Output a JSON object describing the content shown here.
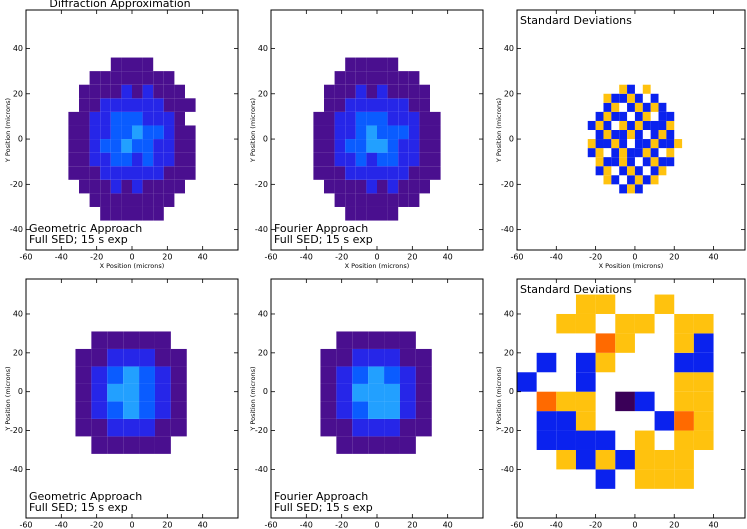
{
  "chart_data": [
    {
      "type": "heatmap",
      "title": "Diffraction Approximation",
      "annotations": [
        "Geometric Approach",
        "Full SED; 15 s exp"
      ],
      "xlabel": "X Position (microns)",
      "ylabel": "Y Position (microns)",
      "xlim": [
        -60,
        60
      ],
      "ylim": [
        -49,
        57
      ],
      "xticks": [
        -60,
        -40,
        -20,
        0,
        20,
        40
      ],
      "yticks": [
        -40,
        -20,
        0,
        20,
        40
      ],
      "x_edges": [
        -36,
        -30,
        -24,
        -18,
        -12,
        -6,
        0,
        6,
        12,
        18,
        24,
        30,
        36
      ],
      "y_edges": [
        -36,
        -30,
        -24,
        -18,
        -12,
        -6,
        0,
        6,
        12,
        18,
        24,
        30,
        36
      ],
      "levels": [
        1,
        2,
        3,
        4
      ],
      "colors": [
        "#4a0f8f",
        "#2626e8",
        "#0a5cff",
        "#22a0ff"
      ],
      "z": [
        [
          0,
          0,
          0,
          1,
          1,
          1,
          1,
          1,
          1,
          0,
          0,
          0
        ],
        [
          0,
          0,
          1,
          1,
          1,
          1,
          1,
          1,
          1,
          1,
          0,
          0
        ],
        [
          0,
          1,
          1,
          1,
          2,
          1,
          2,
          1,
          1,
          1,
          1,
          0
        ],
        [
          1,
          1,
          1,
          2,
          2,
          2,
          2,
          2,
          2,
          1,
          1,
          1
        ],
        [
          1,
          1,
          2,
          2,
          3,
          3,
          2,
          3,
          2,
          2,
          1,
          1
        ],
        [
          1,
          1,
          2,
          3,
          3,
          4,
          3,
          3,
          2,
          2,
          1,
          1
        ],
        [
          1,
          1,
          2,
          2,
          3,
          3,
          4,
          3,
          3,
          2,
          1,
          1
        ],
        [
          1,
          1,
          2,
          2,
          3,
          3,
          3,
          2,
          2,
          2,
          1,
          0
        ],
        [
          0,
          1,
          1,
          2,
          2,
          2,
          2,
          2,
          2,
          1,
          1,
          1
        ],
        [
          0,
          1,
          1,
          1,
          1,
          2,
          1,
          2,
          1,
          1,
          1,
          0
        ],
        [
          0,
          0,
          1,
          1,
          1,
          1,
          1,
          1,
          1,
          1,
          0,
          0
        ],
        [
          0,
          0,
          0,
          0,
          1,
          1,
          1,
          1,
          0,
          0,
          0,
          0
        ]
      ]
    },
    {
      "type": "heatmap",
      "annotations": [
        "Fourier Approach",
        "Full SED; 15 s exp"
      ],
      "xlabel": "X Position (microns)",
      "ylabel": "Y Position (microns)",
      "xlim": [
        -60,
        60
      ],
      "ylim": [
        -49,
        57
      ],
      "xticks": [
        -60,
        -40,
        -20,
        0,
        20,
        40
      ],
      "yticks": [
        -40,
        -20,
        0,
        20,
        40
      ],
      "x_edges": [
        -36,
        -30,
        -24,
        -18,
        -12,
        -6,
        0,
        6,
        12,
        18,
        24,
        30,
        36
      ],
      "y_edges": [
        -36,
        -30,
        -24,
        -18,
        -12,
        -6,
        0,
        6,
        12,
        18,
        24,
        30,
        36
      ],
      "levels": [
        1,
        2,
        3,
        4
      ],
      "colors": [
        "#4a0f8f",
        "#2626e8",
        "#0a5cff",
        "#22a0ff"
      ],
      "z": [
        [
          0,
          0,
          0,
          1,
          1,
          1,
          1,
          1,
          0,
          0,
          0,
          0
        ],
        [
          0,
          0,
          1,
          1,
          1,
          1,
          1,
          1,
          1,
          1,
          0,
          0
        ],
        [
          0,
          1,
          1,
          1,
          1,
          2,
          1,
          2,
          1,
          1,
          1,
          0
        ],
        [
          1,
          1,
          1,
          2,
          2,
          2,
          2,
          2,
          2,
          1,
          1,
          1
        ],
        [
          1,
          1,
          2,
          2,
          3,
          2,
          3,
          3,
          2,
          2,
          1,
          1
        ],
        [
          1,
          1,
          2,
          3,
          3,
          4,
          4,
          3,
          2,
          2,
          1,
          1
        ],
        [
          1,
          1,
          2,
          2,
          3,
          4,
          3,
          3,
          3,
          2,
          1,
          1
        ],
        [
          1,
          1,
          2,
          2,
          3,
          3,
          3,
          2,
          2,
          2,
          1,
          1
        ],
        [
          0,
          1,
          1,
          2,
          2,
          2,
          2,
          2,
          2,
          1,
          1,
          0
        ],
        [
          0,
          1,
          1,
          1,
          2,
          1,
          2,
          1,
          1,
          1,
          1,
          0
        ],
        [
          0,
          0,
          1,
          1,
          1,
          1,
          1,
          1,
          1,
          1,
          0,
          0
        ],
        [
          0,
          0,
          0,
          1,
          1,
          1,
          1,
          1,
          0,
          0,
          0,
          0
        ]
      ]
    },
    {
      "type": "heatmap",
      "annotations": [
        "Standard Deviations"
      ],
      "xlabel": "X Position (microns)",
      "ylabel": "Y Position (microns)",
      "xlim": [
        -60,
        56
      ],
      "ylim": [
        -49,
        57
      ],
      "xticks": [
        -60,
        -40,
        -20,
        0,
        20,
        40
      ],
      "yticks": [
        -40,
        -20,
        0,
        20,
        40
      ],
      "x_edges": [
        -24,
        -20,
        -16,
        -12,
        -8,
        -4,
        0,
        4,
        8,
        12,
        16,
        20,
        24
      ],
      "y_edges": [
        -24,
        -20,
        -16,
        -12,
        -8,
        -4,
        0,
        4,
        8,
        12,
        16,
        20,
        24
      ],
      "levels": [
        -1,
        1
      ],
      "colors": [
        "#ffc20e",
        "#0a22ee"
      ],
      "z": [
        [
          0,
          0,
          0,
          0,
          1,
          -1,
          1,
          0,
          0,
          0,
          0,
          0
        ],
        [
          0,
          0,
          -1,
          1,
          0,
          1,
          -1,
          1,
          -1,
          0,
          0,
          0
        ],
        [
          0,
          1,
          -1,
          0,
          1,
          -1,
          1,
          0,
          1,
          -1,
          0,
          0
        ],
        [
          0,
          -1,
          1,
          1,
          -1,
          1,
          0,
          1,
          -1,
          1,
          1,
          0
        ],
        [
          1,
          -1,
          0,
          1,
          -1,
          1,
          1,
          -1,
          1,
          0,
          -1,
          0
        ],
        [
          -1,
          1,
          1,
          -1,
          1,
          0,
          1,
          1,
          -1,
          1,
          1,
          -1
        ],
        [
          0,
          1,
          -1,
          1,
          1,
          -1,
          1,
          0,
          1,
          -1,
          1,
          0
        ],
        [
          1,
          -1,
          1,
          0,
          -1,
          1,
          -1,
          1,
          1,
          1,
          -1,
          0
        ],
        [
          0,
          1,
          -1,
          1,
          1,
          0,
          1,
          -1,
          0,
          1,
          1,
          0
        ],
        [
          0,
          0,
          1,
          -1,
          0,
          1,
          -1,
          1,
          -1,
          1,
          0,
          0
        ],
        [
          0,
          0,
          -1,
          1,
          1,
          -1,
          1,
          0,
          1,
          0,
          0,
          0
        ],
        [
          0,
          0,
          0,
          0,
          -1,
          1,
          0,
          -1,
          0,
          0,
          0,
          0
        ]
      ]
    },
    {
      "type": "heatmap",
      "annotations": [
        "Geometric Approach",
        "Full SED; 15 s exp"
      ],
      "xlabel": "X Position (microns)",
      "ylabel": "Y Position (microns)",
      "xlim": [
        -60,
        60
      ],
      "ylim": [
        -65,
        58
      ],
      "xticks": [
        -60,
        -40,
        -20,
        0,
        20,
        40
      ],
      "yticks": [
        -40,
        -20,
        0,
        20,
        40
      ],
      "x_edges": [
        -32,
        -23,
        -14,
        -5,
        4,
        13,
        22,
        31
      ],
      "y_edges": [
        -32,
        -23,
        -14,
        -5,
        4,
        13,
        22,
        31
      ],
      "levels": [
        1,
        2,
        3,
        4
      ],
      "colors": [
        "#4a0f8f",
        "#2626e8",
        "#0a5cff",
        "#22a0ff"
      ],
      "z": [
        [
          0,
          1,
          1,
          1,
          1,
          1,
          0
        ],
        [
          1,
          1,
          2,
          2,
          2,
          1,
          1
        ],
        [
          1,
          2,
          3,
          4,
          3,
          2,
          1
        ],
        [
          1,
          2,
          4,
          4,
          3,
          2,
          1
        ],
        [
          1,
          2,
          3,
          4,
          3,
          2,
          1
        ],
        [
          1,
          1,
          2,
          2,
          2,
          1,
          1
        ],
        [
          0,
          1,
          1,
          1,
          1,
          1,
          0
        ]
      ]
    },
    {
      "type": "heatmap",
      "annotations": [
        "Fourier Approach",
        "Full SED; 15 s exp"
      ],
      "xlabel": "X Position (microns)",
      "ylabel": "Y Position (microns)",
      "xlim": [
        -60,
        60
      ],
      "ylim": [
        -65,
        58
      ],
      "xticks": [
        -60,
        -40,
        -20,
        0,
        20,
        40
      ],
      "yticks": [
        -40,
        -20,
        0,
        20,
        40
      ],
      "x_edges": [
        -32,
        -23,
        -14,
        -5,
        4,
        13,
        22,
        31
      ],
      "y_edges": [
        -32,
        -23,
        -14,
        -5,
        4,
        13,
        22,
        31
      ],
      "levels": [
        1,
        2,
        3,
        4
      ],
      "colors": [
        "#4a0f8f",
        "#2626e8",
        "#0a5cff",
        "#22a0ff"
      ],
      "z": [
        [
          0,
          1,
          1,
          1,
          1,
          1,
          0
        ],
        [
          1,
          1,
          2,
          2,
          2,
          1,
          1
        ],
        [
          1,
          2,
          3,
          4,
          4,
          2,
          1
        ],
        [
          1,
          2,
          4,
          4,
          4,
          2,
          1
        ],
        [
          1,
          2,
          3,
          4,
          3,
          2,
          1
        ],
        [
          1,
          1,
          2,
          2,
          2,
          1,
          1
        ],
        [
          0,
          1,
          1,
          1,
          1,
          1,
          0
        ]
      ]
    },
    {
      "type": "heatmap",
      "annotations": [
        "Standard Deviations"
      ],
      "xlabel": "X Position (microns)",
      "ylabel": "Y Position (microns)",
      "xlim": [
        -60,
        56
      ],
      "ylim": [
        -65,
        58
      ],
      "xticks": [
        -60,
        -40,
        -20,
        0,
        20,
        40
      ],
      "yticks": [
        -40,
        -20,
        0,
        20,
        40
      ],
      "x_edges": [
        -60,
        -50,
        -40,
        -30,
        -20,
        -10,
        0,
        10,
        20,
        30,
        40,
        50
      ],
      "y_edges": [
        -50,
        -40,
        -30,
        -20,
        -10,
        0,
        10,
        20,
        30,
        40,
        50
      ],
      "levels": [
        -2,
        -1,
        1,
        2
      ],
      "colors": [
        "#ff6a00",
        "#ffc20e",
        "#0a22ee",
        "#3a0058"
      ],
      "z": [
        [
          0,
          0,
          0,
          0,
          1,
          0,
          -1,
          -1,
          -1,
          0,
          0
        ],
        [
          0,
          0,
          -1,
          1,
          -1,
          1,
          -1,
          -1,
          -1,
          0,
          0
        ],
        [
          0,
          1,
          1,
          1,
          1,
          0,
          -1,
          0,
          -1,
          -1,
          0
        ],
        [
          0,
          1,
          1,
          -1,
          0,
          0,
          0,
          1,
          -2,
          -1,
          0
        ],
        [
          0,
          -2,
          -1,
          -1,
          0,
          2,
          1,
          0,
          -1,
          -1,
          0
        ],
        [
          1,
          0,
          0,
          1,
          0,
          0,
          0,
          0,
          -1,
          -1,
          0
        ],
        [
          0,
          1,
          0,
          1,
          -1,
          0,
          0,
          0,
          1,
          1,
          0
        ],
        [
          0,
          0,
          0,
          0,
          -2,
          -1,
          0,
          0,
          -1,
          1,
          0
        ],
        [
          0,
          0,
          -1,
          -1,
          0,
          -1,
          -1,
          0,
          -1,
          -1,
          0
        ],
        [
          0,
          0,
          0,
          -1,
          -1,
          0,
          0,
          -1,
          0,
          0,
          0
        ],
        [
          0,
          0,
          0,
          0,
          0,
          0,
          -1,
          0,
          0,
          0,
          0
        ]
      ]
    }
  ]
}
